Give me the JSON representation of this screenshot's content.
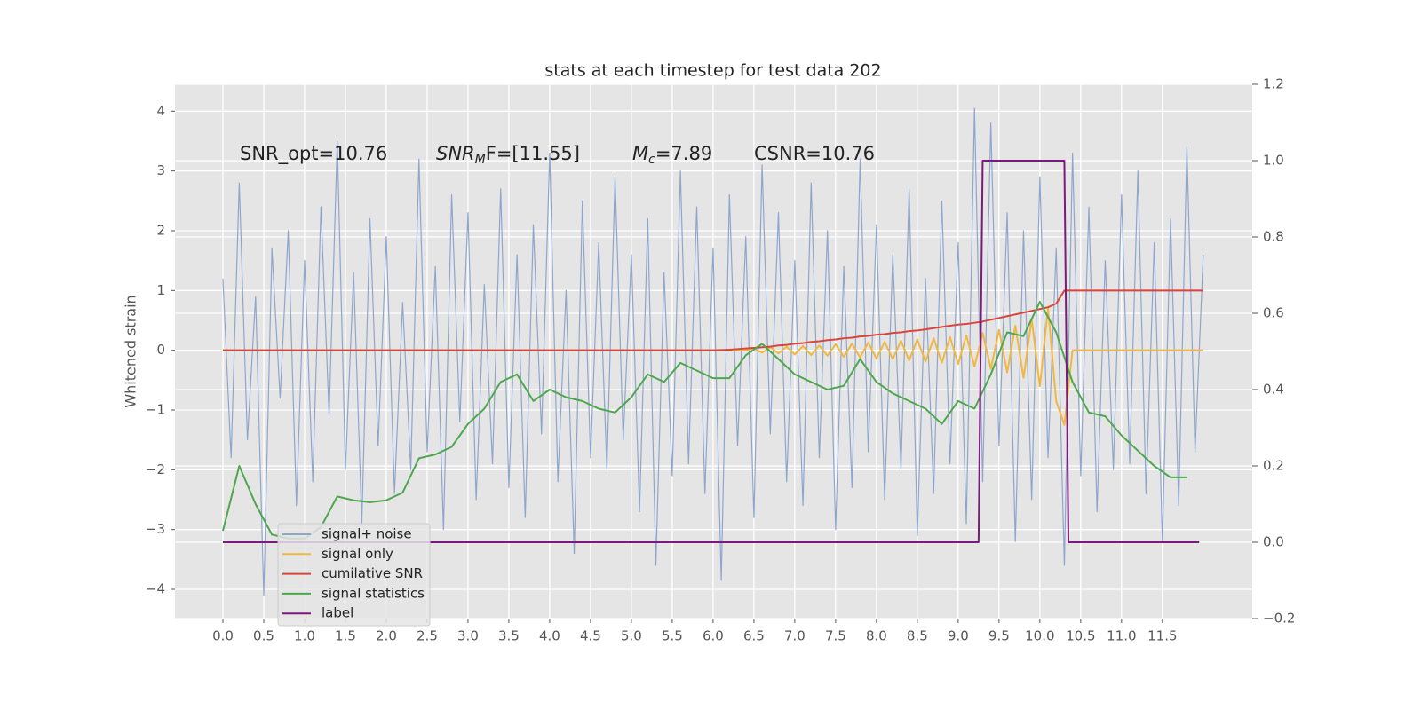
{
  "chart_data": {
    "type": "line",
    "title": "stats at each timestep for test data 202",
    "ylabel": "Whitened strain",
    "xlim": [
      -0.587,
      12.6
    ],
    "ylim": [
      -4.49,
      4.45
    ],
    "y2lim": [
      -0.2,
      1.2
    ],
    "grid": true,
    "legend": "lower left",
    "xticks": [
      {
        "value": 0,
        "label": "0.0"
      },
      0.5,
      {
        "value": 1,
        "label": "1.0"
      },
      1.5,
      {
        "value": 2,
        "label": "2.0"
      },
      2.5,
      {
        "value": 3,
        "label": "3.0"
      },
      3.5,
      {
        "value": 4,
        "label": "4.0"
      },
      4.5,
      {
        "value": 5,
        "label": "5.0"
      },
      5.5,
      {
        "value": 6,
        "label": "6.0"
      },
      6.5,
      {
        "value": 7,
        "label": "7.0"
      },
      7.5,
      {
        "value": 8,
        "label": "8.0"
      },
      8.5,
      {
        "value": 9,
        "label": "9.0"
      },
      9.5,
      {
        "value": 10,
        "label": "10.0"
      },
      10.5,
      {
        "value": 11,
        "label": "11.0"
      },
      11.5
    ],
    "yticks": [
      {
        "value": -4,
        "label": "−4"
      },
      {
        "value": -3,
        "label": "−3"
      },
      {
        "value": -2,
        "label": "−2"
      },
      {
        "value": -1,
        "label": "−1"
      },
      0,
      1,
      2,
      3,
      4
    ],
    "y2ticks": [
      {
        "value": -0.2,
        "label": "−0.2"
      },
      {
        "value": 0,
        "label": "0.0"
      },
      0.2,
      0.4,
      0.6,
      0.8,
      {
        "value": 1,
        "label": "1.0"
      },
      1.2
    ],
    "annotations": [
      {
        "text": "SNR_opt=10.76"
      },
      {
        "text": "SNR",
        "sub": "M",
        "rest": "F=[11.55]"
      },
      {
        "text": "M",
        "sub": "c",
        "rest": "=7.89"
      },
      {
        "text": "CSNR=10.76"
      }
    ],
    "x": [
      0,
      0.1,
      0.2,
      0.3,
      0.4,
      0.5,
      0.6,
      0.7,
      0.8,
      0.9,
      1,
      1.1,
      1.2,
      1.3,
      1.4,
      1.5,
      1.6,
      1.7,
      1.8,
      1.9,
      2,
      2.1,
      2.2,
      2.3,
      2.4,
      2.5,
      2.6,
      2.7,
      2.8,
      2.9,
      3,
      3.1,
      3.2,
      3.3,
      3.4,
      3.5,
      3.6,
      3.7,
      3.8,
      3.9,
      4,
      4.1,
      4.2,
      4.3,
      4.4,
      4.5,
      4.6,
      4.7,
      4.8,
      4.9,
      5,
      5.1,
      5.2,
      5.3,
      5.4,
      5.5,
      5.6,
      5.7,
      5.8,
      5.9,
      6,
      6.1,
      6.2,
      6.3,
      6.4,
      6.5,
      6.6,
      6.7,
      6.8,
      6.9,
      7,
      7.1,
      7.2,
      7.3,
      7.4,
      7.5,
      7.6,
      7.7,
      7.8,
      7.9,
      8,
      8.1,
      8.2,
      8.3,
      8.4,
      8.5,
      8.6,
      8.7,
      8.8,
      8.9,
      9,
      9.1,
      9.2,
      9.3,
      9.4,
      9.5,
      9.6,
      9.7,
      9.8,
      9.9,
      10,
      10.1,
      10.2,
      10.3,
      10.4,
      10.5,
      10.6,
      10.7,
      10.8,
      10.9,
      11,
      11.1,
      11.2,
      11.3,
      11.4,
      11.5,
      11.6,
      11.7,
      11.8,
      11.9,
      12
    ],
    "series": [
      {
        "name": "signal+ noise",
        "color": "#8fa6cc",
        "values": [
          1.2,
          -1.8,
          2.8,
          -1.5,
          0.9,
          -4.1,
          1.7,
          -0.8,
          2.0,
          -2.6,
          1.5,
          -2.2,
          2.4,
          -1.1,
          3.5,
          -2.0,
          1.3,
          -2.9,
          2.2,
          -1.6,
          1.9,
          -2.4,
          0.8,
          -2.0,
          3.2,
          -1.7,
          1.4,
          -3.0,
          2.6,
          -1.2,
          2.3,
          -2.5,
          1.1,
          -1.9,
          2.7,
          -2.3,
          1.6,
          -2.8,
          2.1,
          -1.4,
          3.3,
          -2.2,
          1.0,
          -3.4,
          2.5,
          -1.8,
          1.8,
          -2.0,
          2.9,
          -1.5,
          1.6,
          -2.7,
          2.2,
          -3.6,
          1.3,
          -2.1,
          3.0,
          -1.9,
          2.4,
          -2.4,
          1.7,
          -3.85,
          2.6,
          -1.6,
          1.9,
          -2.8,
          3.1,
          -1.4,
          2.3,
          -2.2,
          1.5,
          -2.6,
          2.8,
          -1.8,
          2.0,
          -3.0,
          1.4,
          -2.3,
          3.2,
          -1.7,
          2.1,
          -2.5,
          1.6,
          -2.0,
          2.7,
          -3.1,
          1.2,
          -2.4,
          2.5,
          -1.9,
          1.8,
          -2.9,
          4.05,
          -2.2,
          3.8,
          -1.6,
          2.3,
          -3.2,
          2.0,
          -2.5,
          2.9,
          -1.8,
          1.7,
          -3.6,
          3.3,
          -2.1,
          2.4,
          -2.7,
          1.5,
          -2.0,
          2.6,
          -1.9,
          3.0,
          -2.4,
          1.8,
          -3.2,
          2.2,
          -2.6,
          3.4,
          -1.7,
          1.6
        ]
      },
      {
        "name": "signal only",
        "color": "#f2b740",
        "values": [
          0,
          0,
          0,
          0,
          0,
          0,
          0,
          0,
          0,
          0,
          0,
          0,
          0,
          0,
          0,
          0,
          0,
          0,
          0,
          0,
          0,
          0,
          0,
          0,
          0,
          0,
          0,
          0,
          0,
          0,
          0,
          0,
          0,
          0,
          0,
          0,
          0,
          0,
          0,
          0,
          0,
          0,
          0,
          0,
          0,
          0,
          0,
          0,
          0,
          0,
          0,
          0,
          0,
          0,
          0,
          0,
          0,
          0,
          0,
          0,
          0,
          0,
          0,
          0,
          0,
          0.03,
          -0.04,
          0.05,
          -0.05,
          0.06,
          -0.07,
          0.07,
          -0.08,
          0.08,
          -0.09,
          0.1,
          -0.11,
          0.11,
          -0.12,
          0.13,
          -0.14,
          0.14,
          -0.15,
          0.16,
          -0.17,
          0.18,
          -0.19,
          0.2,
          -0.21,
          0.22,
          -0.23,
          0.25,
          -0.27,
          0.29,
          -0.31,
          0.34,
          -0.37,
          0.41,
          -0.46,
          0.52,
          -0.6,
          0.7,
          -0.85,
          -1.25,
          0,
          0,
          0,
          0,
          0,
          0,
          0,
          0,
          0,
          0,
          0,
          0,
          0,
          0,
          0,
          0,
          0
        ]
      },
      {
        "name": "cumilative SNR",
        "color": "#d9453c",
        "values": [
          0,
          0,
          0,
          0,
          0,
          0,
          0,
          0,
          0,
          0,
          0,
          0,
          0,
          0,
          0,
          0,
          0,
          0,
          0,
          0,
          0,
          0,
          0,
          0,
          0,
          0,
          0,
          0,
          0,
          0,
          0,
          0,
          0,
          0,
          0,
          0,
          0,
          0,
          0,
          0,
          0,
          0,
          0,
          0,
          0,
          0,
          0,
          0,
          0,
          0,
          0,
          0,
          0,
          0,
          0,
          0,
          0,
          0,
          0,
          0,
          0,
          0.005,
          0.01,
          0.02,
          0.03,
          0.04,
          0.05,
          0.06,
          0.08,
          0.09,
          0.11,
          0.12,
          0.14,
          0.15,
          0.17,
          0.18,
          0.2,
          0.21,
          0.23,
          0.24,
          0.26,
          0.27,
          0.29,
          0.3,
          0.32,
          0.33,
          0.35,
          0.37,
          0.39,
          0.41,
          0.43,
          0.44,
          0.46,
          0.48,
          0.51,
          0.54,
          0.57,
          0.6,
          0.63,
          0.66,
          0.69,
          0.72,
          0.78,
          1.0,
          1.0,
          1.0,
          1.0,
          1.0,
          1.0,
          1.0,
          1.0,
          1.0,
          1.0,
          1.0,
          1.0,
          1.0,
          1.0,
          1.0,
          1.0,
          1.0,
          1.0
        ]
      },
      {
        "name": "signal statistics",
        "color": "#4ea64e",
        "axis": "y2",
        "x": [
          0,
          0.2,
          0.4,
          0.6,
          0.8,
          1,
          1.2,
          1.4,
          1.6,
          1.8,
          2,
          2.2,
          2.4,
          2.6,
          2.8,
          3,
          3.2,
          3.4,
          3.6,
          3.8,
          4,
          4.2,
          4.4,
          4.6,
          4.8,
          5,
          5.2,
          5.4,
          5.6,
          5.8,
          6,
          6.2,
          6.4,
          6.6,
          6.8,
          7,
          7.2,
          7.4,
          7.6,
          7.8,
          8,
          8.2,
          8.4,
          8.6,
          8.8,
          9,
          9.2,
          9.4,
          9.6,
          9.8,
          10,
          10.2,
          10.4,
          10.6,
          10.8,
          11,
          11.2,
          11.4,
          11.6,
          11.8
        ],
        "values": [
          0.03,
          0.2,
          0.1,
          0.02,
          0.01,
          0.01,
          0.04,
          0.12,
          0.11,
          0.105,
          0.11,
          0.13,
          0.22,
          0.23,
          0.25,
          0.31,
          0.35,
          0.42,
          0.44,
          0.37,
          0.4,
          0.38,
          0.37,
          0.35,
          0.34,
          0.38,
          0.44,
          0.42,
          0.47,
          0.45,
          0.43,
          0.43,
          0.49,
          0.52,
          0.48,
          0.44,
          0.42,
          0.4,
          0.41,
          0.48,
          0.42,
          0.39,
          0.37,
          0.35,
          0.31,
          0.37,
          0.35,
          0.44,
          0.55,
          0.54,
          0.63,
          0.55,
          0.42,
          0.34,
          0.33,
          0.28,
          0.24,
          0.2,
          0.17,
          0.17
        ]
      },
      {
        "name": "label",
        "color": "#7a1a7a",
        "axis": "y2",
        "x": [
          0,
          9.25,
          9.3,
          10.3,
          10.35,
          11.95
        ],
        "values": [
          0,
          0,
          1,
          1,
          0,
          0
        ]
      }
    ]
  }
}
